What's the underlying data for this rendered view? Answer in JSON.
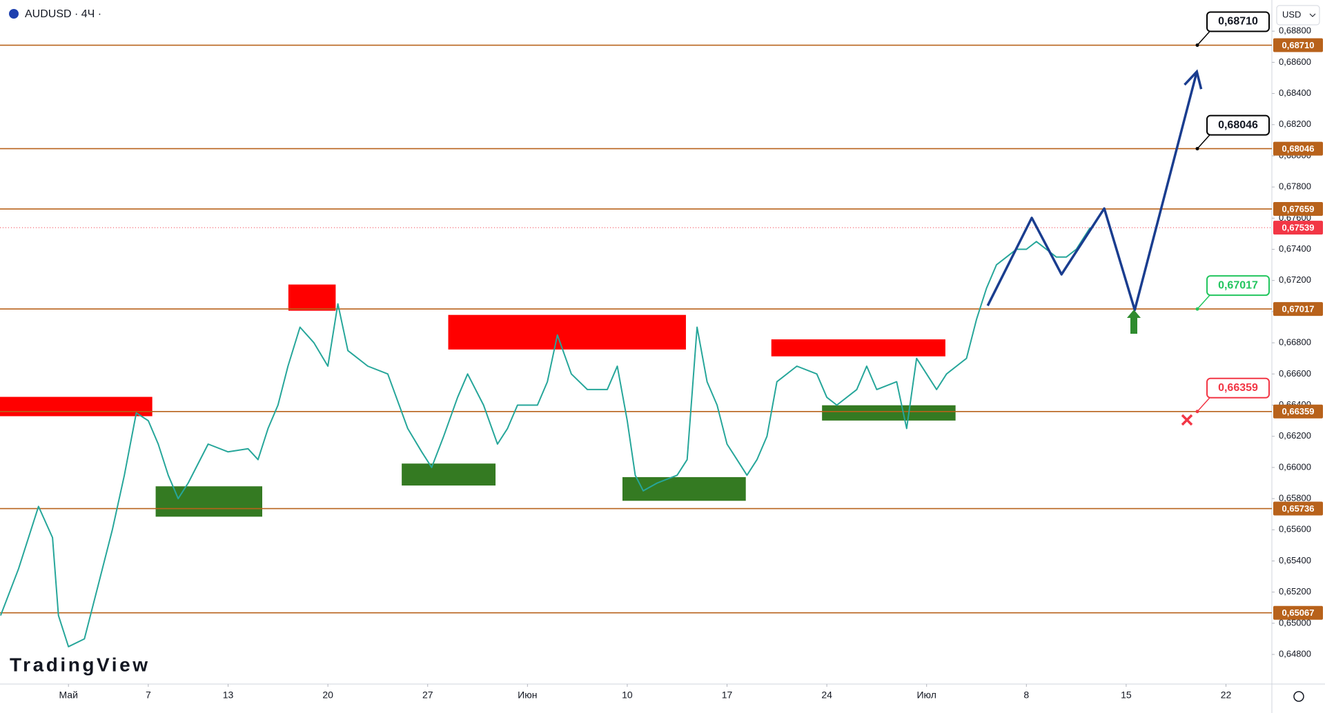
{
  "header": {
    "symbol": "AUDUSD · 4Ч ·"
  },
  "currency": "USD",
  "logo": "TradingView",
  "chart_data": {
    "type": "line",
    "color": "#26a69a",
    "x": [
      -3.4,
      -2.5,
      -1.5,
      -0.8,
      -0.5,
      0,
      0.8,
      1.5,
      2.2,
      2.8,
      3.4,
      4,
      4.5,
      5,
      5.5,
      6,
      7,
      8,
      9,
      9.5,
      10,
      10.5,
      11,
      11.6,
      12.3,
      13,
      13.5,
      14,
      15,
      16,
      17,
      17.7,
      18.2,
      18.8,
      19.5,
      20,
      20.8,
      21.5,
      22,
      22.5,
      23.5,
      24,
      24.5,
      25.2,
      26,
      27,
      27.5,
      28,
      28.4,
      28.8,
      29.5,
      30.5,
      31,
      31.5,
      32,
      32.5,
      33,
      33.5,
      34,
      34.5,
      35,
      35.5,
      36.5,
      37.5,
      38,
      38.5,
      39.5,
      40,
      40.5,
      41.5,
      42,
      42.5,
      43.5,
      44,
      45,
      45.5,
      46,
      46.5,
      47,
      47.5,
      48,
      48.5,
      49,
      49.5,
      50,
      50.5,
      51.2
    ],
    "values": [
      0.6505,
      0.6535,
      0.6575,
      0.6555,
      0.6505,
      0.6485,
      0.649,
      0.6525,
      0.656,
      0.6595,
      0.6635,
      0.663,
      0.6615,
      0.6595,
      0.658,
      0.659,
      0.6615,
      0.661,
      0.6612,
      0.6605,
      0.6625,
      0.664,
      0.6665,
      0.669,
      0.668,
      0.6665,
      0.6705,
      0.6675,
      0.6665,
      0.666,
      0.6625,
      0.661,
      0.66,
      0.662,
      0.6645,
      0.666,
      0.664,
      0.6615,
      0.6625,
      0.664,
      0.664,
      0.6655,
      0.6685,
      0.666,
      0.665,
      0.665,
      0.6665,
      0.663,
      0.6595,
      0.6585,
      0.659,
      0.6595,
      0.6605,
      0.669,
      0.6655,
      0.664,
      0.6615,
      0.6605,
      0.6595,
      0.6605,
      0.662,
      0.6655,
      0.6665,
      0.666,
      0.6645,
      0.664,
      0.665,
      0.6665,
      0.665,
      0.6655,
      0.6625,
      0.667,
      0.665,
      0.666,
      0.667,
      0.6695,
      0.6715,
      0.673,
      0.6735,
      0.674,
      0.674,
      0.6745,
      0.674,
      0.6735,
      0.6735,
      0.674,
      0.6754
    ],
    "xlim": [
      -3.43,
      60.3
    ],
    "xticks": [
      {
        "value": 0,
        "label": "Май"
      },
      {
        "value": 4,
        "label": "7"
      },
      {
        "value": 8,
        "label": "13"
      },
      {
        "value": 13,
        "label": "20"
      },
      {
        "value": 18,
        "label": "27"
      },
      {
        "value": 23,
        "label": "Июн"
      },
      {
        "value": 28,
        "label": "10"
      },
      {
        "value": 33,
        "label": "17"
      },
      {
        "value": 38,
        "label": "24"
      },
      {
        "value": 43,
        "label": "Июл"
      },
      {
        "value": 48,
        "label": "8"
      },
      {
        "value": 53,
        "label": "15"
      },
      {
        "value": 58,
        "label": "22"
      }
    ],
    "ylim": [
      0.6461,
      0.69
    ],
    "yticks": [
      {
        "value": 0.648,
        "label": "0,64800"
      },
      {
        "value": 0.65,
        "label": "0,65000"
      },
      {
        "value": 0.652,
        "label": "0,65200"
      },
      {
        "value": 0.654,
        "label": "0,65400"
      },
      {
        "value": 0.656,
        "label": "0,65600"
      },
      {
        "value": 0.658,
        "label": "0,65800"
      },
      {
        "value": 0.66,
        "label": "0,66000"
      },
      {
        "value": 0.662,
        "label": "0,66200"
      },
      {
        "value": 0.664,
        "label": "0,66400"
      },
      {
        "value": 0.666,
        "label": "0,66600"
      },
      {
        "value": 0.668,
        "label": "0,66800"
      },
      {
        "value": 0.67,
        "label": "0,67000"
      },
      {
        "value": 0.672,
        "label": "0,67200"
      },
      {
        "value": 0.674,
        "label": "0,67400"
      },
      {
        "value": 0.676,
        "label": "0,67600"
      },
      {
        "value": 0.678,
        "label": "0,67800"
      },
      {
        "value": 0.68,
        "label": "0,68000"
      },
      {
        "value": 0.682,
        "label": "0,68200"
      },
      {
        "value": 0.684,
        "label": "0,68400"
      },
      {
        "value": 0.686,
        "label": "0,68600"
      },
      {
        "value": 0.688,
        "label": "0,68800"
      }
    ],
    "levels": [
      {
        "value": 0.6871,
        "label": "0,68710"
      },
      {
        "value": 0.68046,
        "label": "0,68046"
      },
      {
        "value": 0.67659,
        "label": "0,67659"
      },
      {
        "value": 0.67017,
        "label": "0,67017"
      },
      {
        "value": 0.66359,
        "label": "0,66359"
      },
      {
        "value": 0.65736,
        "label": "0,65736"
      },
      {
        "value": 0.65067,
        "label": "0,65067"
      }
    ],
    "level_color": "#b8621b",
    "current_price": {
      "value": 0.67539,
      "label": "0,67539",
      "color": "#f23645"
    },
    "zones": [
      {
        "x": [
          -3.43,
          4.2
        ],
        "y": [
          0.66329,
          0.66453
        ],
        "color": "#ff0000"
      },
      {
        "x": [
          11.02,
          13.39
        ],
        "y": [
          0.67006,
          0.67174
        ],
        "color": "#ff0000"
      },
      {
        "x": [
          19.03,
          30.94
        ],
        "y": [
          0.66757,
          0.66979
        ],
        "color": "#ff0000"
      },
      {
        "x": [
          35.22,
          43.94
        ],
        "y": [
          0.66713,
          0.66822
        ],
        "color": "#ff0000"
      },
      {
        "x": [
          4.37,
          9.71
        ],
        "y": [
          0.65684,
          0.65879
        ],
        "color": "#347a22"
      },
      {
        "x": [
          16.7,
          21.4
        ],
        "y": [
          0.65884,
          0.66025
        ],
        "color": "#347a22"
      },
      {
        "x": [
          27.76,
          33.94
        ],
        "y": [
          0.65786,
          0.65938
        ],
        "color": "#347a22"
      },
      {
        "x": [
          37.76,
          44.45
        ],
        "y": [
          0.66301,
          0.66399
        ],
        "color": "#347a22"
      }
    ],
    "projection": {
      "x": [
        46.06,
        48.27,
        49.76,
        51.9,
        53.43,
        56.54
      ],
      "values": [
        0.67038,
        0.67602,
        0.67239,
        0.67662,
        0.67011,
        0.6854
      ],
      "color": "#1a3d8f"
    },
    "callouts": [
      {
        "value": 0.6871,
        "label": "0,68710",
        "color": "#000000"
      },
      {
        "value": 0.68046,
        "label": "0,68046",
        "color": "#000000"
      },
      {
        "value": 0.67017,
        "label": "0,67017",
        "color": "#22c55e"
      },
      {
        "value": 0.66359,
        "label": "0,66359",
        "color": "#f23645"
      }
    ]
  }
}
